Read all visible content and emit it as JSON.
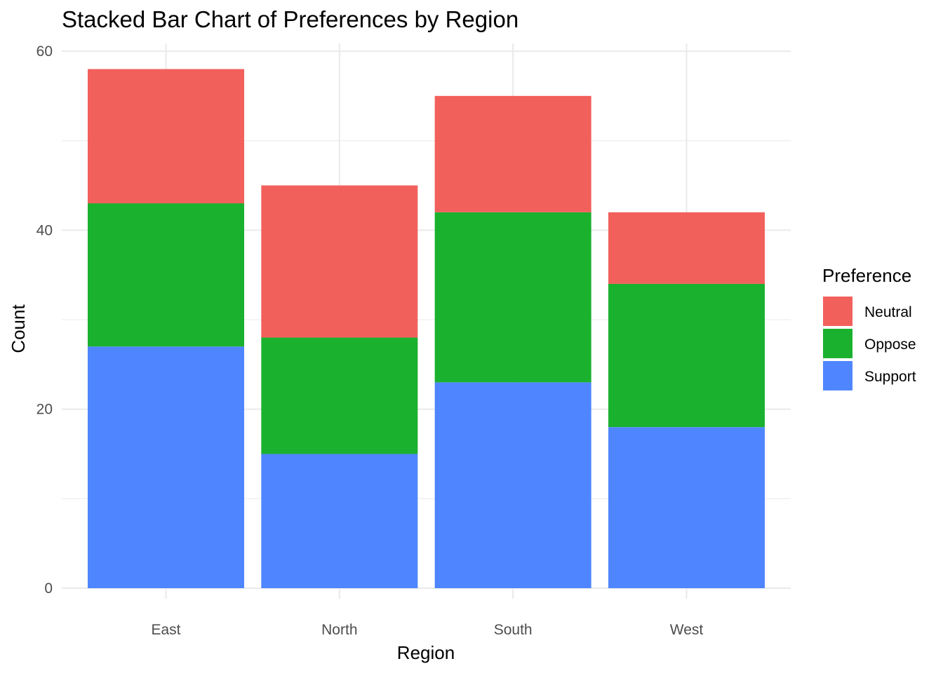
{
  "chart_data": {
    "type": "bar",
    "stacked": true,
    "title": "Stacked Bar Chart of Preferences by Region",
    "xlabel": "Region",
    "ylabel": "Count",
    "categories": [
      "East",
      "North",
      "South",
      "West"
    ],
    "ylim": [
      0,
      60
    ],
    "y_ticks": [
      0,
      20,
      40,
      60
    ],
    "y_tick_labels": [
      "0",
      "20",
      "40",
      "60"
    ],
    "grid": true,
    "legend": {
      "title": "Preference",
      "placement": "right",
      "entries": [
        "Neutral",
        "Oppose",
        "Support"
      ]
    },
    "stack_order_bottom_to_top": [
      "Support",
      "Oppose",
      "Neutral"
    ],
    "series": [
      {
        "name": "Neutral",
        "color": "#F2605C",
        "values": [
          15,
          17,
          13,
          8
        ]
      },
      {
        "name": "Oppose",
        "color": "#1AB12E",
        "values": [
          16,
          13,
          19,
          16
        ]
      },
      {
        "name": "Support",
        "color": "#4F86FF",
        "values": [
          27,
          15,
          23,
          18
        ]
      }
    ]
  }
}
